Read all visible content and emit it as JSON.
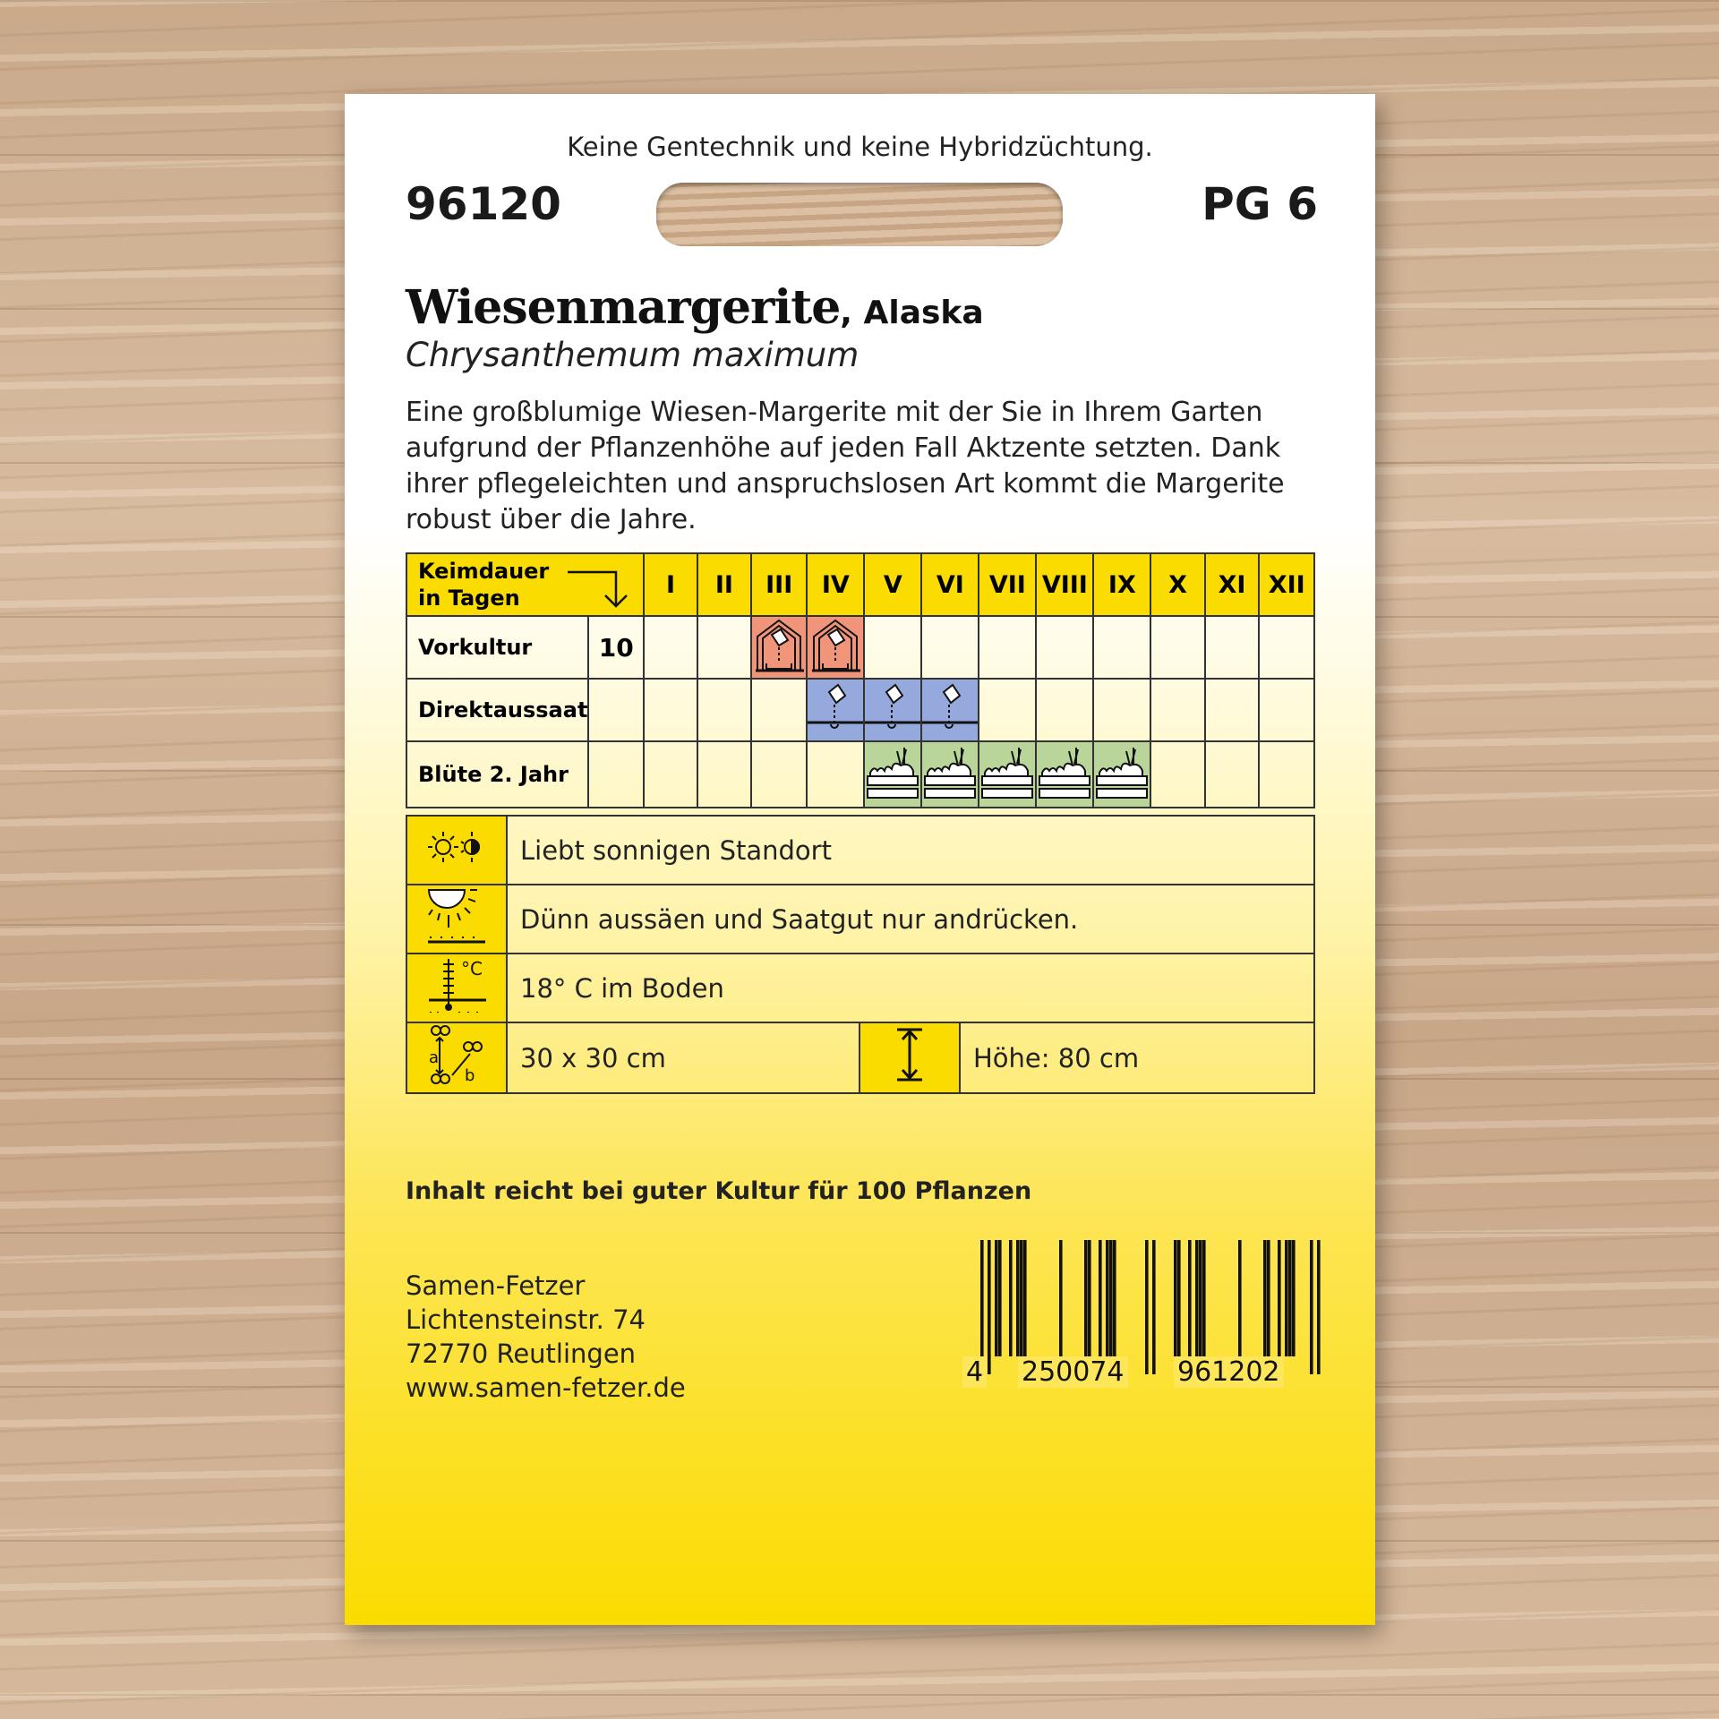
{
  "packet": {
    "top_line": "Keine Gentechnik und keine Hybridzüchtung.",
    "article_number": "96120",
    "price_group": "PG 6",
    "name": "Wiesenmargerite",
    "variety": ", Alaska",
    "latin": "Chrysanthemum maximum",
    "description": "Eine großblumige Wiesen-Margerite mit der Sie in Ihrem Garten aufgrund der Pflanzenhöhe auf jeden Fall Aktzente setzten. Dank ihrer pflegeleichten und anspruchslosen Art kommt die Margerite robust über die Jahre."
  },
  "calendar": {
    "header_label_1": "Keimdauer",
    "header_label_2": "in Tagen",
    "months": [
      "I",
      "II",
      "III",
      "IV",
      "V",
      "VI",
      "VII",
      "VIII",
      "IX",
      "X",
      "XI",
      "XII"
    ],
    "rows": [
      {
        "label": "Vorkultur",
        "keimdauer": "10",
        "months": [
          3,
          4
        ],
        "color": "#f0957a",
        "icon": "greenhouse-sowing-icon"
      },
      {
        "label": "Direktaussaat",
        "keimdauer": "",
        "months": [
          4,
          5,
          6
        ],
        "color": "#95a9dc",
        "icon": "direct-sowing-icon"
      },
      {
        "label": "Blüte 2. Jahr",
        "keimdauer": "",
        "months": [
          5,
          6,
          7,
          8,
          9
        ],
        "color": "#b9d59a",
        "icon": "harvest-crate-icon"
      }
    ]
  },
  "info": {
    "sun": "Liebt sonnigen Standort",
    "sowing": "Dünn aussäen und Saatgut nur andrücken.",
    "temperature": "18° C im Boden",
    "spacing": "30 x 30 cm",
    "height": "Höhe: 80 cm"
  },
  "content_note": "Inhalt reicht bei guter Kultur für 100 Pflanzen",
  "address": {
    "company": "Samen-Fetzer",
    "street": "Lichtensteinstr. 74",
    "city": "72770 Reutlingen",
    "web": "www.samen-fetzer.de"
  },
  "barcode": {
    "d1": "4",
    "d2": "250074",
    "d3": "961202"
  },
  "colors": {
    "yellow": "#fbdc00",
    "vorkultur": "#f0957a",
    "direktaussaat": "#95a9dc",
    "bluete": "#b9d59a"
  }
}
